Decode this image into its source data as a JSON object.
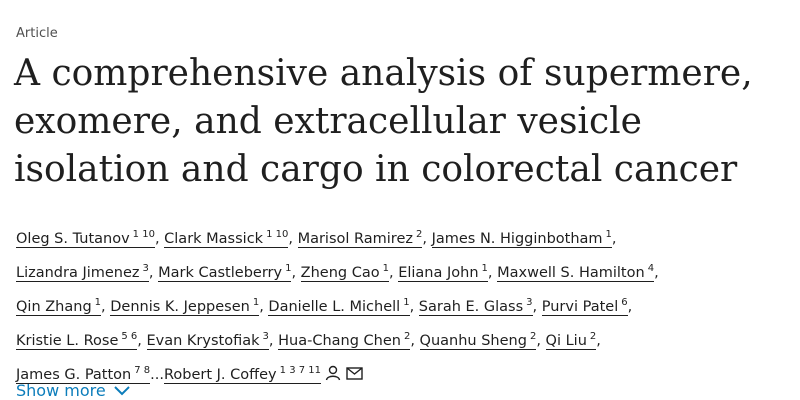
{
  "article_type": "Article",
  "title": "A comprehensive analysis of supermere, exomere, and extracellular vesicle isolation and cargo in colorectal cancer",
  "separator": ",",
  "ellipsis": "...",
  "authors": [
    {
      "name": "Oleg S. Tutanov",
      "affiliations": "1 10"
    },
    {
      "name": "Clark Massick",
      "affiliations": "1 10"
    },
    {
      "name": "Marisol Ramirez",
      "affiliations": "2"
    },
    {
      "name": "James N. Higginbotham",
      "affiliations": "1"
    },
    {
      "name": "Lizandra Jimenez",
      "affiliations": "3"
    },
    {
      "name": "Mark Castleberry",
      "affiliations": "1"
    },
    {
      "name": "Zheng Cao",
      "affiliations": "1"
    },
    {
      "name": "Eliana John",
      "affiliations": "1"
    },
    {
      "name": "Maxwell S. Hamilton",
      "affiliations": "4"
    },
    {
      "name": "Qin Zhang",
      "affiliations": "1"
    },
    {
      "name": "Dennis K. Jeppesen",
      "affiliations": "1"
    },
    {
      "name": "Danielle L. Michell",
      "affiliations": "1"
    },
    {
      "name": "Sarah E. Glass",
      "affiliations": "3"
    },
    {
      "name": "Purvi Patel",
      "affiliations": "6"
    },
    {
      "name": "Kristie L. Rose",
      "affiliations": "5 6"
    },
    {
      "name": "Evan Krystofiak",
      "affiliations": "3"
    },
    {
      "name": "Hua-Chang Chen",
      "affiliations": "2"
    },
    {
      "name": "Quanhu Sheng",
      "affiliations": "2"
    },
    {
      "name": "Qi Liu",
      "affiliations": "2"
    },
    {
      "name": "James G. Patton",
      "affiliations": "7 8"
    }
  ],
  "last_author": {
    "name": "Robert J. Coffey",
    "affiliations": "1 3 7 11"
  },
  "show_more": "Show more"
}
